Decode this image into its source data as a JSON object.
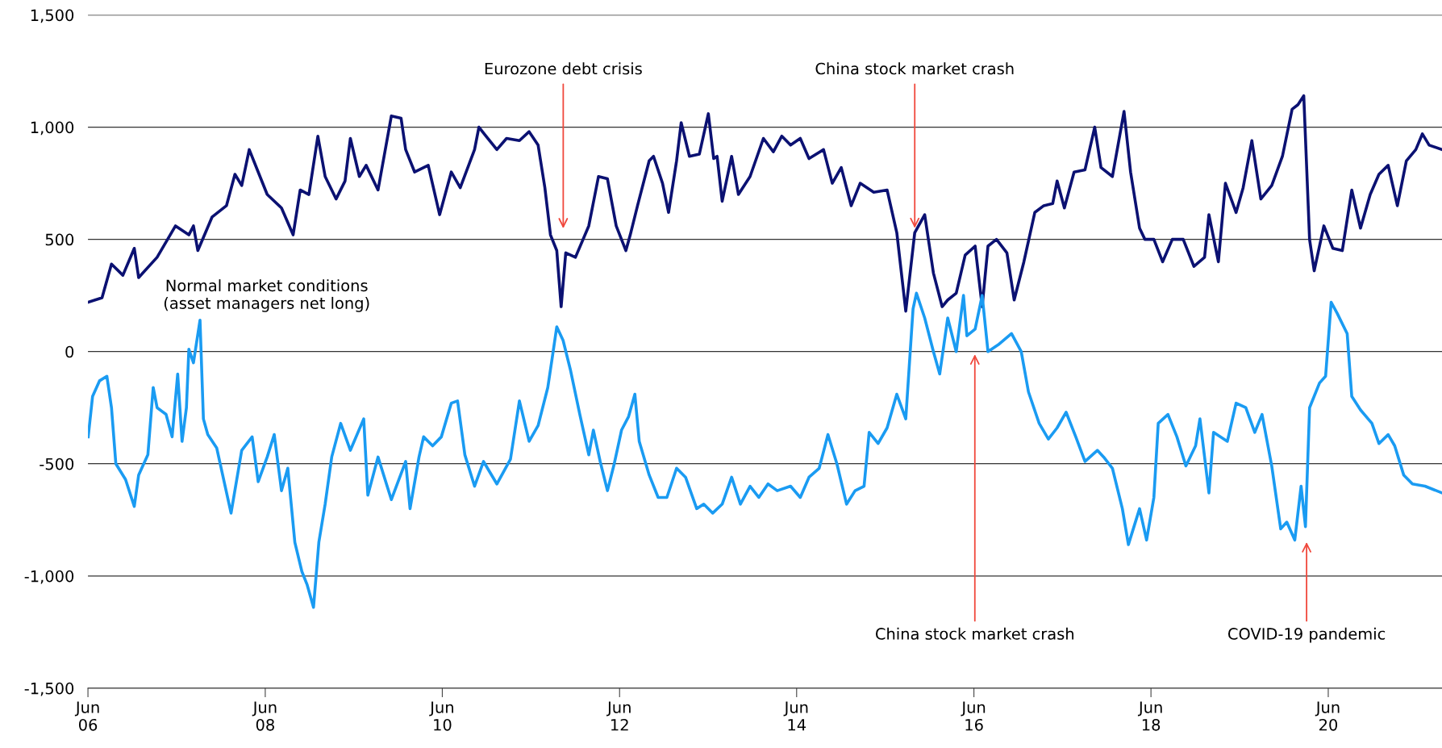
{
  "chart_data": {
    "type": "line",
    "series": [
      {
        "color": "#0b1172",
        "x": [
          "2006-06-02",
          "2006-07-29",
          "2006-09-06",
          "2006-10-23",
          "2006-12-09",
          "2006-12-27",
          "2007-03-13",
          "2007-05-28",
          "2007-07-22",
          "2007-08-10",
          "2007-08-28",
          "2007-10-26",
          "2007-12-24",
          "2008-01-28",
          "2008-02-25",
          "2008-03-27",
          "2008-05-03",
          "2008-06-09",
          "2008-08-07",
          "2008-09-24",
          "2008-10-23",
          "2008-11-28",
          "2009-01-04",
          "2009-02-03",
          "2009-03-20",
          "2009-04-26",
          "2009-05-18",
          "2009-06-24",
          "2009-07-22",
          "2009-09-09",
          "2009-11-03",
          "2009-12-13",
          "2010-01-01",
          "2010-02-07",
          "2010-04-04",
          "2010-05-21",
          "2010-07-08",
          "2010-08-14",
          "2010-10-12",
          "2010-10-30",
          "2010-11-28",
          "2011-01-12",
          "2011-02-21",
          "2011-04-15",
          "2011-05-25",
          "2011-07-01",
          "2011-07-29",
          "2011-08-21",
          "2011-09-16",
          "2011-10-04",
          "2011-10-23",
          "2011-12-02",
          "2012-01-26",
          "2012-03-06",
          "2012-04-12",
          "2012-05-18",
          "2012-06-27",
          "2012-07-15",
          "2012-08-14",
          "2012-10-01",
          "2012-10-19",
          "2012-11-25",
          "2012-12-20",
          "2013-01-22",
          "2013-02-10",
          "2013-03-16",
          "2013-04-26",
          "2013-06-02",
          "2013-06-24",
          "2013-07-08",
          "2013-07-29",
          "2013-09-06",
          "2013-10-04",
          "2013-11-21",
          "2014-01-15",
          "2014-02-25",
          "2014-04-01",
          "2014-05-07",
          "2014-06-16",
          "2014-07-22",
          "2014-09-20",
          "2014-10-26",
          "2014-12-02",
          "2015-01-12",
          "2015-02-18",
          "2015-04-15",
          "2015-06-09",
          "2015-07-19",
          "2015-08-25",
          "2015-10-01",
          "2015-11-11",
          "2015-12-17",
          "2016-01-22",
          "2016-02-14",
          "2016-03-20",
          "2016-04-26",
          "2016-06-06",
          "2016-07-05",
          "2016-07-29",
          "2016-09-02",
          "2016-10-15",
          "2016-11-14",
          "2016-12-24",
          "2017-02-07",
          "2017-03-16",
          "2017-04-22",
          "2017-05-10",
          "2017-06-09",
          "2017-07-19",
          "2017-09-02",
          "2017-10-12",
          "2017-11-07",
          "2017-12-24",
          "2018-02-10",
          "2018-03-09",
          "2018-04-15",
          "2018-05-07",
          "2018-06-13",
          "2018-07-19",
          "2018-08-28",
          "2018-10-12",
          "2018-11-25",
          "2019-01-08",
          "2019-01-26",
          "2019-03-06",
          "2019-04-04",
          "2019-05-18",
          "2019-06-16",
          "2019-07-22",
          "2019-08-28",
          "2019-10-12",
          "2019-11-25",
          "2020-01-04",
          "2020-01-28",
          "2020-02-21",
          "2020-03-16",
          "2020-04-04",
          "2020-05-14",
          "2020-06-20",
          "2020-07-29",
          "2020-09-06",
          "2020-10-12",
          "2020-11-21",
          "2020-12-27",
          "2021-02-03",
          "2021-03-13",
          "2021-04-19",
          "2021-05-28",
          "2021-06-24",
          "2021-07-22",
          "2021-09-13"
        ],
        "values": [
          220,
          240,
          390,
          340,
          460,
          330,
          420,
          560,
          520,
          560,
          450,
          600,
          650,
          790,
          740,
          900,
          800,
          700,
          640,
          520,
          720,
          700,
          960,
          780,
          680,
          760,
          950,
          780,
          830,
          720,
          1050,
          1040,
          900,
          800,
          830,
          610,
          800,
          730,
          900,
          1000,
          960,
          900,
          950,
          940,
          980,
          920,
          730,
          520,
          450,
          200,
          440,
          420,
          560,
          780,
          770,
          560,
          450,
          520,
          650,
          850,
          870,
          750,
          620,
          850,
          1020,
          870,
          880,
          1060,
          860,
          870,
          670,
          870,
          700,
          780,
          950,
          890,
          960,
          920,
          950,
          860,
          900,
          750,
          820,
          650,
          750,
          710,
          720,
          530,
          180,
          530,
          610,
          350,
          200,
          230,
          260,
          430,
          470,
          200,
          470,
          500,
          440,
          230,
          400,
          620,
          650,
          660,
          760,
          640,
          800,
          810,
          1000,
          820,
          780,
          1070,
          800,
          550,
          500,
          500,
          400,
          500,
          500,
          380,
          420,
          610,
          400,
          750,
          620,
          730,
          940,
          680,
          740,
          870,
          1080,
          1100,
          1140,
          500,
          360,
          560,
          460,
          450,
          720,
          550,
          700,
          790,
          830,
          650,
          850,
          900,
          970,
          920,
          900
        ]
      },
      {
        "color": "#1a9bf2",
        "x": [
          "2006-06-02",
          "2006-06-20",
          "2006-07-19",
          "2006-08-18",
          "2006-09-06",
          "2006-09-24",
          "2006-11-03",
          "2006-12-09",
          "2006-12-27",
          "2007-02-03",
          "2007-02-25",
          "2007-03-13",
          "2007-04-19",
          "2007-05-14",
          "2007-06-06",
          "2007-06-24",
          "2007-07-12",
          "2007-07-22",
          "2007-08-10",
          "2007-09-06",
          "2007-09-20",
          "2007-10-08",
          "2007-11-14",
          "2008-01-12",
          "2008-02-25",
          "2008-04-08",
          "2008-05-03",
          "2008-06-09",
          "2008-07-08",
          "2008-08-07",
          "2008-09-02",
          "2008-10-01",
          "2008-10-30",
          "2008-11-21",
          "2008-12-17",
          "2009-01-08",
          "2009-02-03",
          "2009-03-02",
          "2009-04-08",
          "2009-05-18",
          "2009-07-12",
          "2009-07-29",
          "2009-09-09",
          "2009-11-03",
          "2010-01-01",
          "2010-01-19",
          "2010-02-25",
          "2010-03-16",
          "2010-04-22",
          "2010-05-28",
          "2010-07-08",
          "2010-08-03",
          "2010-09-02",
          "2010-10-12",
          "2010-11-18",
          "2011-01-12",
          "2011-03-09",
          "2011-04-15",
          "2011-05-25",
          "2011-07-01",
          "2011-08-10",
          "2011-08-28",
          "2011-09-16",
          "2011-10-12",
          "2011-11-11",
          "2011-12-20",
          "2012-01-26",
          "2012-02-14",
          "2012-03-13",
          "2012-04-12",
          "2012-05-10",
          "2012-06-09",
          "2012-07-08",
          "2012-08-03",
          "2012-08-21",
          "2012-10-01",
          "2012-11-07",
          "2012-12-13",
          "2013-01-22",
          "2013-02-28",
          "2013-04-15",
          "2013-05-14",
          "2013-06-20",
          "2013-07-29",
          "2013-09-06",
          "2013-10-12",
          "2013-11-21",
          "2013-12-27",
          "2014-02-03",
          "2014-03-13",
          "2014-05-07",
          "2014-06-16",
          "2014-07-22",
          "2014-09-02",
          "2014-10-08",
          "2014-11-14",
          "2014-12-24",
          "2015-01-28",
          "2015-03-06",
          "2015-03-27",
          "2015-05-03",
          "2015-06-09",
          "2015-07-19",
          "2015-08-25",
          "2015-09-24",
          "2015-10-08",
          "2015-11-11",
          "2015-12-17",
          "2016-01-12",
          "2016-02-14",
          "2016-03-20",
          "2016-04-19",
          "2016-05-03",
          "2016-06-06",
          "2016-07-05",
          "2016-07-29",
          "2016-09-09",
          "2016-11-03",
          "2016-12-13",
          "2017-01-12",
          "2017-02-25",
          "2017-04-04",
          "2017-05-10",
          "2017-06-16",
          "2017-07-26",
          "2017-09-02",
          "2017-10-23",
          "2017-11-18",
          "2017-12-24",
          "2018-02-03",
          "2018-02-28",
          "2018-04-15",
          "2018-05-14",
          "2018-06-13",
          "2018-07-01",
          "2018-08-10",
          "2018-09-16",
          "2018-10-23",
          "2018-12-02",
          "2018-12-20",
          "2019-01-26",
          "2019-02-14",
          "2019-04-12",
          "2019-05-18",
          "2019-06-27",
          "2019-08-03",
          "2019-09-02",
          "2019-10-12",
          "2019-11-18",
          "2019-12-13",
          "2020-01-15",
          "2020-02-10",
          "2020-02-28",
          "2020-03-16",
          "2020-04-26",
          "2020-05-21",
          "2020-06-13",
          "2020-07-08",
          "2020-08-18",
          "2020-09-06",
          "2020-10-12",
          "2020-11-28",
          "2020-12-27",
          "2021-02-03",
          "2021-03-02",
          "2021-04-08",
          "2021-05-14",
          "2021-07-05",
          "2021-09-13"
        ],
        "values": [
          -380,
          -200,
          -130,
          -110,
          -250,
          -500,
          -570,
          -690,
          -550,
          -460,
          -160,
          -250,
          -280,
          -380,
          -100,
          -400,
          -250,
          10,
          -50,
          140,
          -300,
          -370,
          -430,
          -720,
          -440,
          -380,
          -580,
          -470,
          -370,
          -620,
          -520,
          -850,
          -980,
          -1040,
          -1140,
          -850,
          -680,
          -470,
          -320,
          -440,
          -300,
          -640,
          -470,
          -660,
          -490,
          -700,
          -470,
          -380,
          -420,
          -380,
          -230,
          -220,
          -460,
          -600,
          -490,
          -590,
          -480,
          -220,
          -400,
          -330,
          -160,
          -30,
          110,
          50,
          -80,
          -280,
          -460,
          -350,
          -490,
          -620,
          -500,
          -350,
          -290,
          -190,
          -400,
          -550,
          -650,
          -650,
          -520,
          -560,
          -700,
          -680,
          -720,
          -680,
          -560,
          -680,
          -600,
          -650,
          -590,
          -620,
          -600,
          -650,
          -560,
          -520,
          -370,
          -500,
          -680,
          -620,
          -600,
          -360,
          -410,
          -340,
          -190,
          -300,
          190,
          260,
          150,
          0,
          -100,
          150,
          0,
          250,
          70,
          100,
          250,
          0,
          30,
          80,
          0,
          -180,
          -320,
          -390,
          -340,
          -270,
          -380,
          -490,
          -440,
          -470,
          -520,
          -700,
          -860,
          -700,
          -840,
          -650,
          -320,
          -280,
          -380,
          -510,
          -420,
          -300,
          -630,
          -360,
          -400,
          -230,
          -250,
          -360,
          -280,
          -510,
          -790,
          -760,
          -840,
          -600,
          -780,
          -250,
          -140,
          -110,
          220,
          170,
          80,
          -200,
          -260,
          -320,
          -410,
          -370,
          -420,
          -550,
          -590,
          -600,
          -630
        ]
      }
    ],
    "xlim": [
      "2006-06-01",
      "2021-09-13"
    ],
    "xticks": [
      {
        "value": "2006-06-01",
        "label": "Jun\n06"
      },
      {
        "value": "2008-06-01",
        "label": "Jun\n08"
      },
      {
        "value": "2010-06-01",
        "label": "Jun\n10"
      },
      {
        "value": "2012-06-01",
        "label": "Jun\n12"
      },
      {
        "value": "2014-06-01",
        "label": "Jun\n14"
      },
      {
        "value": "2016-06-01",
        "label": "Jun\n16"
      },
      {
        "value": "2018-06-01",
        "label": "Jun\n18"
      },
      {
        "value": "2020-06-01",
        "label": "Jun\n20"
      }
    ],
    "ylim": [
      -1500,
      1500
    ],
    "yticks": [
      {
        "value": -1500,
        "label": "-1,500"
      },
      {
        "value": -1000,
        "label": "-1,000"
      },
      -500,
      0,
      500,
      {
        "value": 1000,
        "label": "1,000"
      },
      {
        "value": 1500,
        "label": "1,500"
      }
    ],
    "grid": "y",
    "annotations": [
      "Normal market conditions\n(asset managers net long)",
      "Eurozone debt crisis",
      {
        "text": "China stock market crash",
        "x": "2015-10-01",
        "y": 550
      },
      "China stock market crash",
      "COVID-19 pandemic"
    ]
  }
}
